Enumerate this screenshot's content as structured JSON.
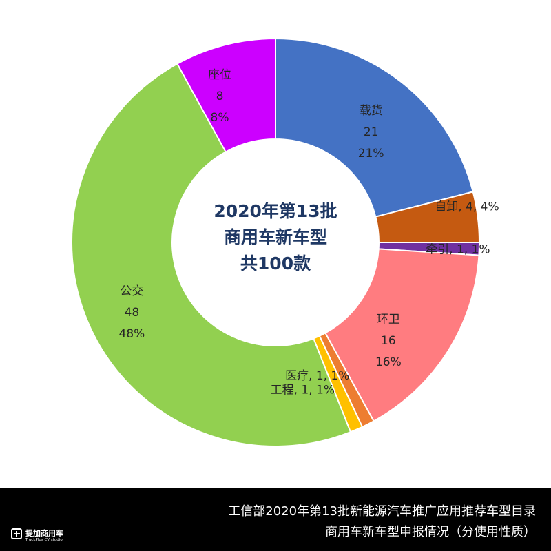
{
  "chart_data": {
    "type": "pie",
    "title_lines": [
      "2020年第13批",
      "商用车新车型",
      "共100款"
    ],
    "unit_suffix": "%",
    "slices": [
      {
        "name": "载货",
        "value": 21,
        "percent": 21,
        "color": "#4472c4",
        "label_style": "stacked"
      },
      {
        "name": "自卸",
        "value": 4,
        "percent": 4,
        "color": "#c55a11",
        "label_style": "inline"
      },
      {
        "name": "牵引",
        "value": 1,
        "percent": 1,
        "color": "#7030a0",
        "label_style": "inline"
      },
      {
        "name": "环卫",
        "value": 16,
        "percent": 16,
        "color": "#ff7c80",
        "label_style": "stacked"
      },
      {
        "name": "医疗",
        "value": 1,
        "percent": 1,
        "color": "#ed7d31",
        "label_style": "inline"
      },
      {
        "name": "工程",
        "value": 1,
        "percent": 1,
        "color": "#ffc000",
        "label_style": "inline"
      },
      {
        "name": "公交",
        "value": 48,
        "percent": 48,
        "color": "#92d050",
        "label_style": "stacked"
      },
      {
        "name": "座位",
        "value": 8,
        "percent": 8,
        "color": "#cc00ff",
        "label_style": "stacked"
      }
    ]
  },
  "footer": {
    "line1": "工信部2020年第13批新能源汽车推广应用推荐车型目录",
    "line2": "商用车新车型申报情况（分使用性质）"
  },
  "logo": {
    "name": "提加商用车",
    "sub": "TruckPlus CV studio",
    "icon": "truckplus-logo-icon"
  }
}
